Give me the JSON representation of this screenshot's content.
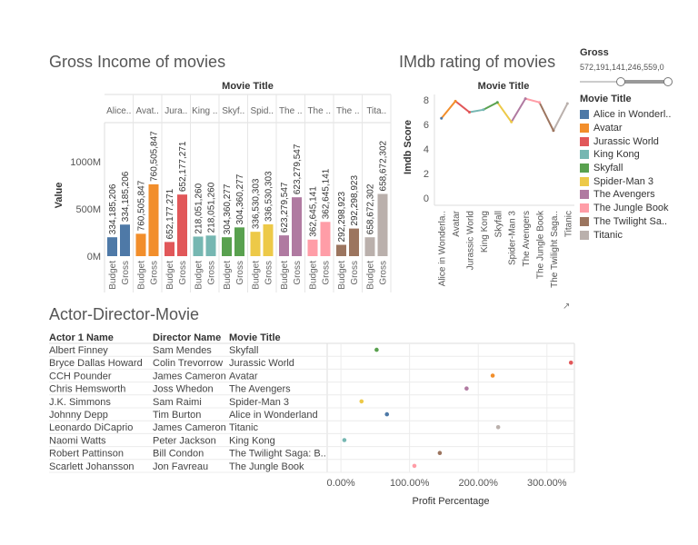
{
  "titles": {
    "gross": "Gross Income of movies",
    "imdb": "IMdb rating of movies",
    "table": "Actor-Director-Movie"
  },
  "filter": {
    "label": "Gross",
    "range_text": "572,191,141,246,559,0"
  },
  "legend": {
    "title": "Movie Title",
    "items": [
      {
        "label": "Alice in Wonderl..",
        "color": "#4e79a7"
      },
      {
        "label": "Avatar",
        "color": "#f28e2b"
      },
      {
        "label": "Jurassic World",
        "color": "#e15759"
      },
      {
        "label": "King Kong",
        "color": "#76b7b2"
      },
      {
        "label": "Skyfall",
        "color": "#59a14f"
      },
      {
        "label": "Spider-Man 3",
        "color": "#edc948"
      },
      {
        "label": "The Avengers",
        "color": "#b07aa1"
      },
      {
        "label": "The Jungle Book",
        "color": "#ff9da7"
      },
      {
        "label": "The Twilight Sa..",
        "color": "#9c755f"
      },
      {
        "label": "Titanic",
        "color": "#bab0ac"
      }
    ]
  },
  "popout_icon": "popout-icon",
  "chart_data": [
    {
      "type": "bar",
      "title": "Gross Income of movies",
      "column_header": "Movie Title",
      "ylabel": "Value",
      "ylim": [
        0,
        1000000000
      ],
      "yticks": [
        {
          "v": 0,
          "label": "0M"
        },
        {
          "v": 500000000,
          "label": "500M"
        },
        {
          "v": 1000000000,
          "label": "1000M"
        }
      ],
      "bar_labels": [
        "Budget",
        "Gross"
      ],
      "groups": [
        {
          "header": "Alice..",
          "color": "#4e79a7",
          "bars": [
            {
              "v": 200000000,
              "label": "334,185,206"
            },
            {
              "v": 334185206,
              "label": "334,185,206"
            }
          ]
        },
        {
          "header": "Avat..",
          "color": "#f28e2b",
          "bars": [
            {
              "v": 237000000,
              "label": "760,505,847"
            },
            {
              "v": 760505847,
              "label": "760,505,847"
            }
          ]
        },
        {
          "header": "Jura..",
          "color": "#e15759",
          "bars": [
            {
              "v": 150000000,
              "label": "652,177,271"
            },
            {
              "v": 652177271,
              "label": "652,177,271"
            }
          ]
        },
        {
          "header": "King ..",
          "color": "#76b7b2",
          "bars": [
            {
              "v": 207000000,
              "label": "218,051,260"
            },
            {
              "v": 218051260,
              "label": "218,051,260"
            }
          ]
        },
        {
          "header": "Skyf..",
          "color": "#59a14f",
          "bars": [
            {
              "v": 200000000,
              "label": "304,360,277"
            },
            {
              "v": 304360277,
              "label": "304,360,277"
            }
          ]
        },
        {
          "header": "Spid..",
          "color": "#edc948",
          "bars": [
            {
              "v": 258000000,
              "label": "336,530,303"
            },
            {
              "v": 336530303,
              "label": "336,530,303"
            }
          ]
        },
        {
          "header": "The ..",
          "color": "#b07aa1",
          "bars": [
            {
              "v": 220000000,
              "label": "623,279,547"
            },
            {
              "v": 623279547,
              "label": "623,279,547"
            }
          ]
        },
        {
          "header": "The ..",
          "color": "#ff9da7",
          "bars": [
            {
              "v": 175000000,
              "label": "362,645,141"
            },
            {
              "v": 362645141,
              "label": "362,645,141"
            }
          ]
        },
        {
          "header": "The ..",
          "color": "#9c755f",
          "bars": [
            {
              "v": 120000000,
              "label": "292,298,923"
            },
            {
              "v": 292298923,
              "label": "292,298,923"
            }
          ]
        },
        {
          "header": "Tita..",
          "color": "#bab0ac",
          "bars": [
            {
              "v": 200000000,
              "label": "658,672,302"
            },
            {
              "v": 658672302,
              "label": "658,672,302"
            }
          ]
        }
      ]
    },
    {
      "type": "line",
      "title": "IMdb rating of movies",
      "xlabel_top": "Movie Title",
      "ylabel": "Imdb Score",
      "ylim": [
        0,
        8
      ],
      "yticks": [
        0,
        2,
        4,
        6,
        8
      ],
      "categories": [
        "Alice in Wonderla..",
        "Avatar",
        "Jurassic World",
        "King Kong",
        "Skyfall",
        "Spider-Man 3",
        "The Avengers",
        "The Jungle Book",
        "The Twilight Saga..",
        "Titanic"
      ],
      "values": [
        6.5,
        7.9,
        7.0,
        7.2,
        7.8,
        6.2,
        8.1,
        7.8,
        5.5,
        7.7
      ],
      "colors": [
        "#4e79a7",
        "#f28e2b",
        "#e15759",
        "#76b7b2",
        "#59a14f",
        "#edc948",
        "#b07aa1",
        "#ff9da7",
        "#9c755f",
        "#bab0ac"
      ]
    },
    {
      "type": "scatter",
      "title": "Actor-Director-Movie",
      "columns": [
        "Actor 1 Name",
        "Director Name",
        "Movie Title"
      ],
      "xlabel": "Profit Percentage",
      "xlim": [
        -0.2,
        3.4
      ],
      "xticks": [
        {
          "v": 0,
          "label": "0.00%"
        },
        {
          "v": 1,
          "label": "100.00%"
        },
        {
          "v": 2,
          "label": "200.00%"
        },
        {
          "v": 3,
          "label": "300.00%"
        }
      ],
      "rows": [
        {
          "actor": "Albert Finney",
          "director": "Sam Mendes",
          "movie": "Skyfall",
          "profit": 0.52,
          "color": "#59a14f"
        },
        {
          "actor": "Bryce Dallas Howard",
          "director": "Colin Trevorrow",
          "movie": "Jurassic World",
          "profit": 3.35,
          "color": "#e15759"
        },
        {
          "actor": "CCH Pounder",
          "director": "James Cameron",
          "movie": "Avatar",
          "profit": 2.21,
          "color": "#f28e2b"
        },
        {
          "actor": "Chris Hemsworth",
          "director": "Joss Whedon",
          "movie": "The Avengers",
          "profit": 1.83,
          "color": "#b07aa1"
        },
        {
          "actor": "J.K. Simmons",
          "director": "Sam Raimi",
          "movie": "Spider-Man 3",
          "profit": 0.3,
          "color": "#edc948"
        },
        {
          "actor": "Johnny Depp",
          "director": "Tim Burton",
          "movie": "Alice in Wonderland",
          "profit": 0.67,
          "color": "#4e79a7"
        },
        {
          "actor": "Leonardo DiCaprio",
          "director": "James Cameron",
          "movie": "Titanic",
          "profit": 2.29,
          "color": "#bab0ac"
        },
        {
          "actor": "Naomi Watts",
          "director": "Peter Jackson",
          "movie": "King Kong",
          "profit": 0.05,
          "color": "#76b7b2"
        },
        {
          "actor": "Robert Pattinson",
          "director": "Bill Condon",
          "movie": "The Twilight Saga: B..",
          "profit": 1.44,
          "color": "#9c755f"
        },
        {
          "actor": "Scarlett Johansson",
          "director": "Jon Favreau",
          "movie": "The Jungle Book",
          "profit": 1.07,
          "color": "#ff9da7"
        }
      ]
    }
  ]
}
